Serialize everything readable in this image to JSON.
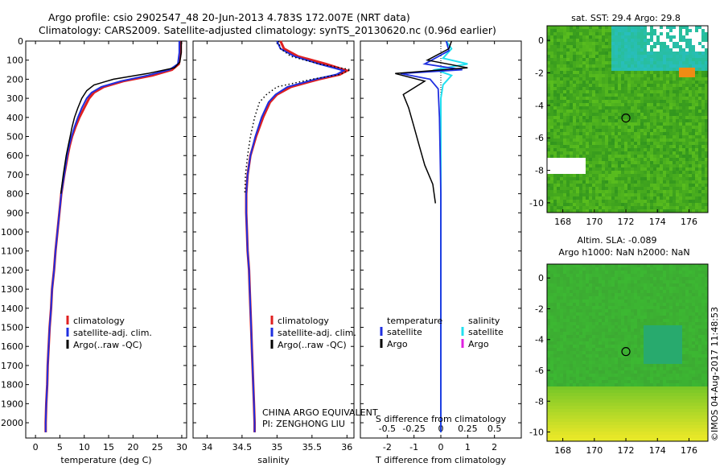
{
  "header": {
    "line1": "Argo profile: csio 2902547_48 20-Jun-2013 4.783S 172.007E (NRT data)",
    "line2": "Climatology: CARS2009. Satellite-adjusted climatology: synTS_20130620.nc (0.96d earlier)"
  },
  "colors": {
    "climatology": "#e02020",
    "satellite": "#1f2fe0",
    "argo": "#000000",
    "sat_s": "#22e0f0",
    "argo_s": "#e020e0"
  },
  "chart_data": [
    {
      "id": "temperature",
      "type": "line",
      "xlabel": "temperature (deg C)",
      "ylabel": "",
      "xlim": [
        -2,
        31
      ],
      "xticks": [
        0,
        5,
        10,
        15,
        20,
        25,
        30
      ],
      "ylim": [
        2080,
        0
      ],
      "yticks": [
        0,
        100,
        200,
        300,
        400,
        500,
        600,
        700,
        800,
        900,
        1000,
        1100,
        1200,
        1300,
        1400,
        1500,
        1600,
        1700,
        1800,
        1900,
        2000
      ],
      "legend": [
        "climatology",
        "satellite-adj. clim.",
        "Argo(..raw -QC)"
      ],
      "series": [
        {
          "name": "climatology",
          "points": [
            [
              29.8,
              0
            ],
            [
              29.8,
              60
            ],
            [
              29.4,
              120
            ],
            [
              28,
              150
            ],
            [
              24,
              180
            ],
            [
              18,
              210
            ],
            [
              14,
              240
            ],
            [
              12,
              270
            ],
            [
              11,
              300
            ],
            [
              10,
              350
            ],
            [
              9,
              400
            ],
            [
              8.2,
              450
            ],
            [
              7.5,
              500
            ],
            [
              7,
              550
            ],
            [
              6.6,
              600
            ],
            [
              5.9,
              700
            ],
            [
              5.3,
              800
            ],
            [
              4.9,
              900
            ],
            [
              4.5,
              1000
            ],
            [
              4.1,
              1100
            ],
            [
              3.8,
              1200
            ],
            [
              3.4,
              1300
            ],
            [
              3.2,
              1400
            ],
            [
              2.9,
              1500
            ],
            [
              2.7,
              1600
            ],
            [
              2.5,
              1700
            ],
            [
              2.4,
              1800
            ],
            [
              2.2,
              1900
            ],
            [
              2.1,
              2000
            ],
            [
              2.1,
              2050
            ]
          ]
        },
        {
          "name": "satellite",
          "points": [
            [
              29.5,
              0
            ],
            [
              29.5,
              60
            ],
            [
              29.2,
              120
            ],
            [
              27.5,
              150
            ],
            [
              23,
              180
            ],
            [
              17.5,
              210
            ],
            [
              13.5,
              240
            ],
            [
              11.5,
              270
            ],
            [
              10.5,
              300
            ],
            [
              9.5,
              350
            ],
            [
              8.7,
              400
            ],
            [
              8,
              450
            ],
            [
              7.4,
              500
            ],
            [
              6.9,
              550
            ],
            [
              6.5,
              600
            ],
            [
              5.9,
              700
            ],
            [
              5.3,
              800
            ],
            [
              4.9,
              900
            ],
            [
              4.5,
              1000
            ],
            [
              4.1,
              1100
            ],
            [
              3.8,
              1200
            ],
            [
              3.4,
              1300
            ],
            [
              3.2,
              1400
            ],
            [
              2.9,
              1500
            ],
            [
              2.7,
              1600
            ],
            [
              2.5,
              1700
            ],
            [
              2.4,
              1800
            ],
            [
              2.2,
              1900
            ],
            [
              2.1,
              2000
            ],
            [
              2.1,
              2050
            ]
          ]
        },
        {
          "name": "argo",
          "points": [
            [
              29.9,
              0
            ],
            [
              29.9,
              60
            ],
            [
              29.6,
              110
            ],
            [
              28.5,
              140
            ],
            [
              23,
              170
            ],
            [
              16,
              200
            ],
            [
              12,
              230
            ],
            [
              10.5,
              260
            ],
            [
              9.5,
              300
            ],
            [
              8.7,
              350
            ],
            [
              8,
              400
            ],
            [
              7.5,
              450
            ],
            [
              7.1,
              500
            ],
            [
              6.7,
              550
            ],
            [
              6.3,
              600
            ],
            [
              5.7,
              700
            ],
            [
              5.2,
              800
            ]
          ]
        }
      ]
    },
    {
      "id": "salinity",
      "type": "line",
      "xlabel": "salinity",
      "xlim": [
        33.8,
        36.1
      ],
      "xticks": [
        34,
        34.5,
        35,
        35.5,
        36
      ],
      "xticklabels": [
        "34",
        "34.5",
        "35",
        "35.5",
        "36"
      ],
      "ylim": [
        2080,
        0
      ],
      "legend": [
        "climatology",
        "satellite-adj. clim.",
        "Argo(..raw -QC)"
      ],
      "annotation": [
        "CHINA ARGO EQUIVALENT",
        "PI: ZENGHONG LIU"
      ],
      "series": [
        {
          "name": "climatology",
          "points": [
            [
              35.05,
              0
            ],
            [
              35.1,
              40
            ],
            [
              35.3,
              80
            ],
            [
              35.7,
              120
            ],
            [
              36.0,
              155
            ],
            [
              35.9,
              175
            ],
            [
              35.6,
              200
            ],
            [
              35.2,
              240
            ],
            [
              35.0,
              280
            ],
            [
              34.9,
              320
            ],
            [
              34.8,
              400
            ],
            [
              34.7,
              500
            ],
            [
              34.62,
              600
            ],
            [
              34.58,
              700
            ],
            [
              34.56,
              800
            ],
            [
              34.56,
              900
            ],
            [
              34.57,
              1000
            ],
            [
              34.58,
              1100
            ],
            [
              34.6,
              1200
            ],
            [
              34.61,
              1300
            ],
            [
              34.62,
              1400
            ],
            [
              34.63,
              1500
            ],
            [
              34.64,
              1600
            ],
            [
              34.65,
              1700
            ],
            [
              34.66,
              1800
            ],
            [
              34.67,
              1900
            ],
            [
              34.68,
              2000
            ],
            [
              34.68,
              2050
            ]
          ]
        },
        {
          "name": "satellite",
          "points": [
            [
              35.0,
              0
            ],
            [
              35.05,
              40
            ],
            [
              35.25,
              80
            ],
            [
              35.6,
              120
            ],
            [
              35.95,
              155
            ],
            [
              35.85,
              175
            ],
            [
              35.55,
              200
            ],
            [
              35.15,
              240
            ],
            [
              34.98,
              280
            ],
            [
              34.88,
              320
            ],
            [
              34.78,
              400
            ],
            [
              34.69,
              500
            ],
            [
              34.62,
              600
            ],
            [
              34.58,
              700
            ],
            [
              34.56,
              800
            ],
            [
              34.56,
              900
            ],
            [
              34.57,
              1000
            ],
            [
              34.58,
              1100
            ],
            [
              34.6,
              1200
            ],
            [
              34.61,
              1300
            ],
            [
              34.62,
              1400
            ],
            [
              34.63,
              1500
            ],
            [
              34.64,
              1600
            ],
            [
              34.65,
              1700
            ],
            [
              34.66,
              1800
            ],
            [
              34.67,
              1900
            ],
            [
              34.68,
              2000
            ],
            [
              34.68,
              2050
            ]
          ]
        },
        {
          "name": "argo",
          "points": [
            [
              35.02,
              0
            ],
            [
              35.05,
              40
            ],
            [
              35.2,
              80
            ],
            [
              35.6,
              120
            ],
            [
              36.05,
              150
            ],
            [
              35.9,
              175
            ],
            [
              35.5,
              200
            ],
            [
              35.0,
              240
            ],
            [
              34.85,
              280
            ],
            [
              34.75,
              320
            ],
            [
              34.68,
              400
            ],
            [
              34.62,
              500
            ],
            [
              34.58,
              600
            ],
            [
              34.55,
              700
            ],
            [
              34.54,
              800
            ]
          ]
        }
      ]
    },
    {
      "id": "difference",
      "type": "line",
      "xlabel": "T difference from climatology",
      "topxlabel": "S difference from climatology",
      "xlim": [
        -3,
        3
      ],
      "xticks": [
        -2,
        -1,
        0,
        1,
        2
      ],
      "topxticks": [
        -0.5,
        -0.25,
        0,
        0.25,
        0.5
      ],
      "topxticklabels": [
        "-0.5",
        "-0.25",
        "0",
        "0.25",
        "0.5"
      ],
      "ylim": [
        2080,
        0
      ],
      "legend_title_t": "temperature",
      "legend_title_s": "salinity",
      "legend_t": [
        "satellite",
        "Argo"
      ],
      "legend_s": [
        "satellite",
        "Argo"
      ],
      "series": [
        {
          "name": "T satellite",
          "points": [
            [
              0.2,
              0
            ],
            [
              0.3,
              50
            ],
            [
              -0.6,
              120
            ],
            [
              0.8,
              150
            ],
            [
              -1.5,
              170
            ],
            [
              -0.4,
              200
            ],
            [
              -0.1,
              250
            ],
            [
              -0.05,
              400
            ],
            [
              0,
              800
            ],
            [
              0,
              1200
            ],
            [
              0,
              1600
            ],
            [
              0,
              2050
            ]
          ]
        },
        {
          "name": "T argo",
          "points": [
            [
              0.4,
              0
            ],
            [
              0.3,
              40
            ],
            [
              -0.5,
              100
            ],
            [
              1.0,
              140
            ],
            [
              -1.7,
              170
            ],
            [
              -0.6,
              210
            ],
            [
              -1.4,
              280
            ],
            [
              -1.2,
              350
            ],
            [
              -1.0,
              450
            ],
            [
              -0.8,
              550
            ],
            [
              -0.6,
              650
            ],
            [
              -0.3,
              750
            ],
            [
              -0.2,
              850
            ]
          ]
        },
        {
          "name": "S satellite",
          "points": [
            [
              0.05,
              0
            ],
            [
              0.1,
              40
            ],
            [
              0.02,
              90
            ],
            [
              0.25,
              120
            ],
            [
              -0.05,
              150
            ],
            [
              0.1,
              180
            ],
            [
              0.02,
              230
            ],
            [
              0.0,
              300
            ],
            [
              0.0,
              600
            ],
            [
              0.0,
              1000
            ],
            [
              0.0,
              1400
            ],
            [
              0.0,
              2050
            ]
          ]
        },
        {
          "name": "Argo dotted",
          "points": [
            [
              0.2,
              80
            ],
            [
              0.1,
              120
            ],
            [
              0.05,
              200
            ],
            [
              0.0,
              350
            ],
            [
              0.0,
              600
            ]
          ]
        }
      ]
    },
    {
      "id": "sst_map",
      "type": "heatmap",
      "title": "sat. SST: 29.4 Argo: 29.8",
      "xticks": [
        168,
        170,
        172,
        174,
        176
      ],
      "yticks": [
        0,
        -2,
        -4,
        -6,
        -8,
        -10
      ],
      "xlim": [
        167,
        177.2
      ],
      "ylim": [
        -10.6,
        0.9
      ],
      "marker": [
        172.0,
        -4.78
      ]
    },
    {
      "id": "sla_map",
      "type": "heatmap",
      "title": [
        "Altim. SLA: -0.089",
        "Argo h1000: NaN h2000: NaN"
      ],
      "xticks": [
        168,
        170,
        172,
        174,
        176
      ],
      "yticks": [
        0,
        -2,
        -4,
        -6,
        -8,
        -10
      ],
      "xlim": [
        167,
        177.2
      ],
      "ylim": [
        -10.6,
        0.9
      ],
      "marker": [
        172.0,
        -4.78
      ]
    }
  ],
  "stamp": "©IMOS 04-Aug-2017 11:48:53"
}
